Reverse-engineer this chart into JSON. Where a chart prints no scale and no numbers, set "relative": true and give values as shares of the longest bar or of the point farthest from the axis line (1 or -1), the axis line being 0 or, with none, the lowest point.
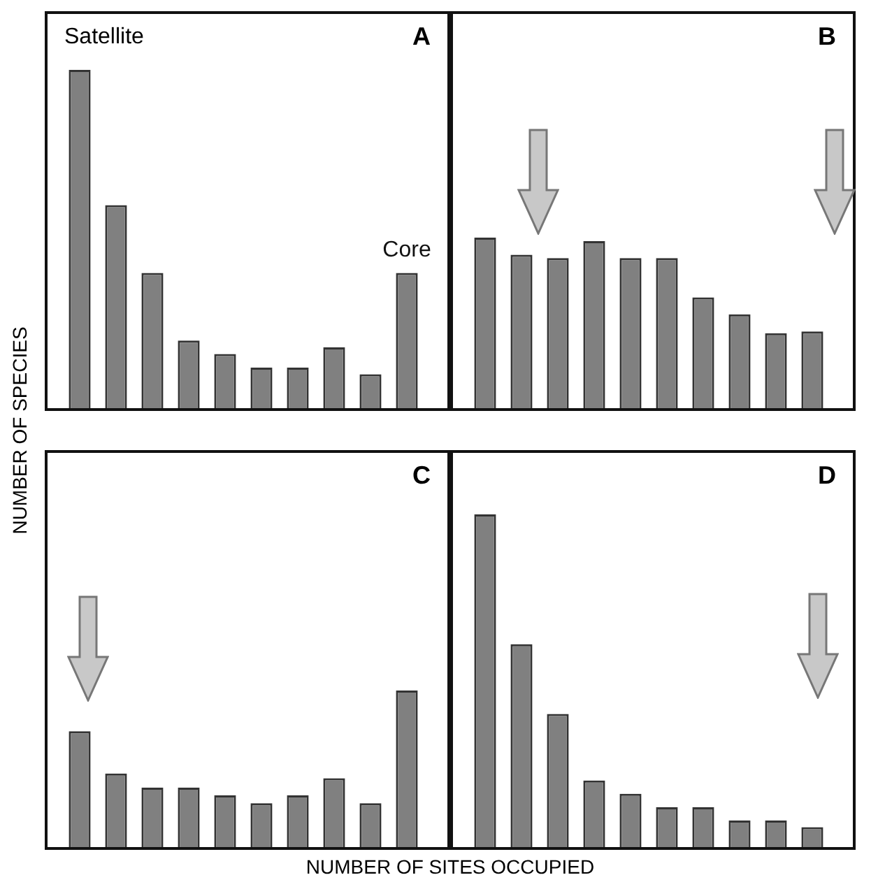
{
  "chart_data": [
    {
      "type": "bar",
      "title": "A",
      "xlabel": "NUMBER OF SITES OCCUPIED",
      "ylabel": "NUMBER OF SPECIES",
      "annotations": [
        "Satellite",
        "Core"
      ],
      "relative": true,
      "color": "#808080",
      "categories": [
        null,
        null,
        null,
        null,
        null,
        null,
        null,
        null,
        null,
        null
      ],
      "values": [
        1,
        0.6,
        0.4,
        0.2,
        0.16,
        0.12,
        0.12,
        0.18,
        0.1,
        0.4
      ]
    },
    {
      "type": "bar",
      "title": "B",
      "relative": true,
      "color": "#808080",
      "categories": [
        null,
        null,
        null,
        null,
        null,
        null,
        null,
        null,
        null,
        null
      ],
      "values": [
        1,
        0.9,
        0.88,
        0.98,
        0.88,
        0.88,
        0.65,
        0.55,
        0.44,
        0.45
      ]
    },
    {
      "type": "bar",
      "title": "C",
      "relative": true,
      "color": "#808080",
      "categories": [
        null,
        null,
        null,
        null,
        null,
        null,
        null,
        null,
        null,
        null
      ],
      "values": [
        0.74,
        0.47,
        0.38,
        0.38,
        0.33,
        0.28,
        0.33,
        0.44,
        0.28,
        1
      ]
    },
    {
      "type": "bar",
      "title": "D",
      "relative": true,
      "color": "#808080",
      "categories": [
        null,
        null,
        null,
        null,
        null,
        null,
        null,
        null,
        null,
        null
      ],
      "values": [
        1,
        0.61,
        0.4,
        0.2,
        0.16,
        0.12,
        0.12,
        0.08,
        0.08,
        0.06
      ]
    }
  ]
}
